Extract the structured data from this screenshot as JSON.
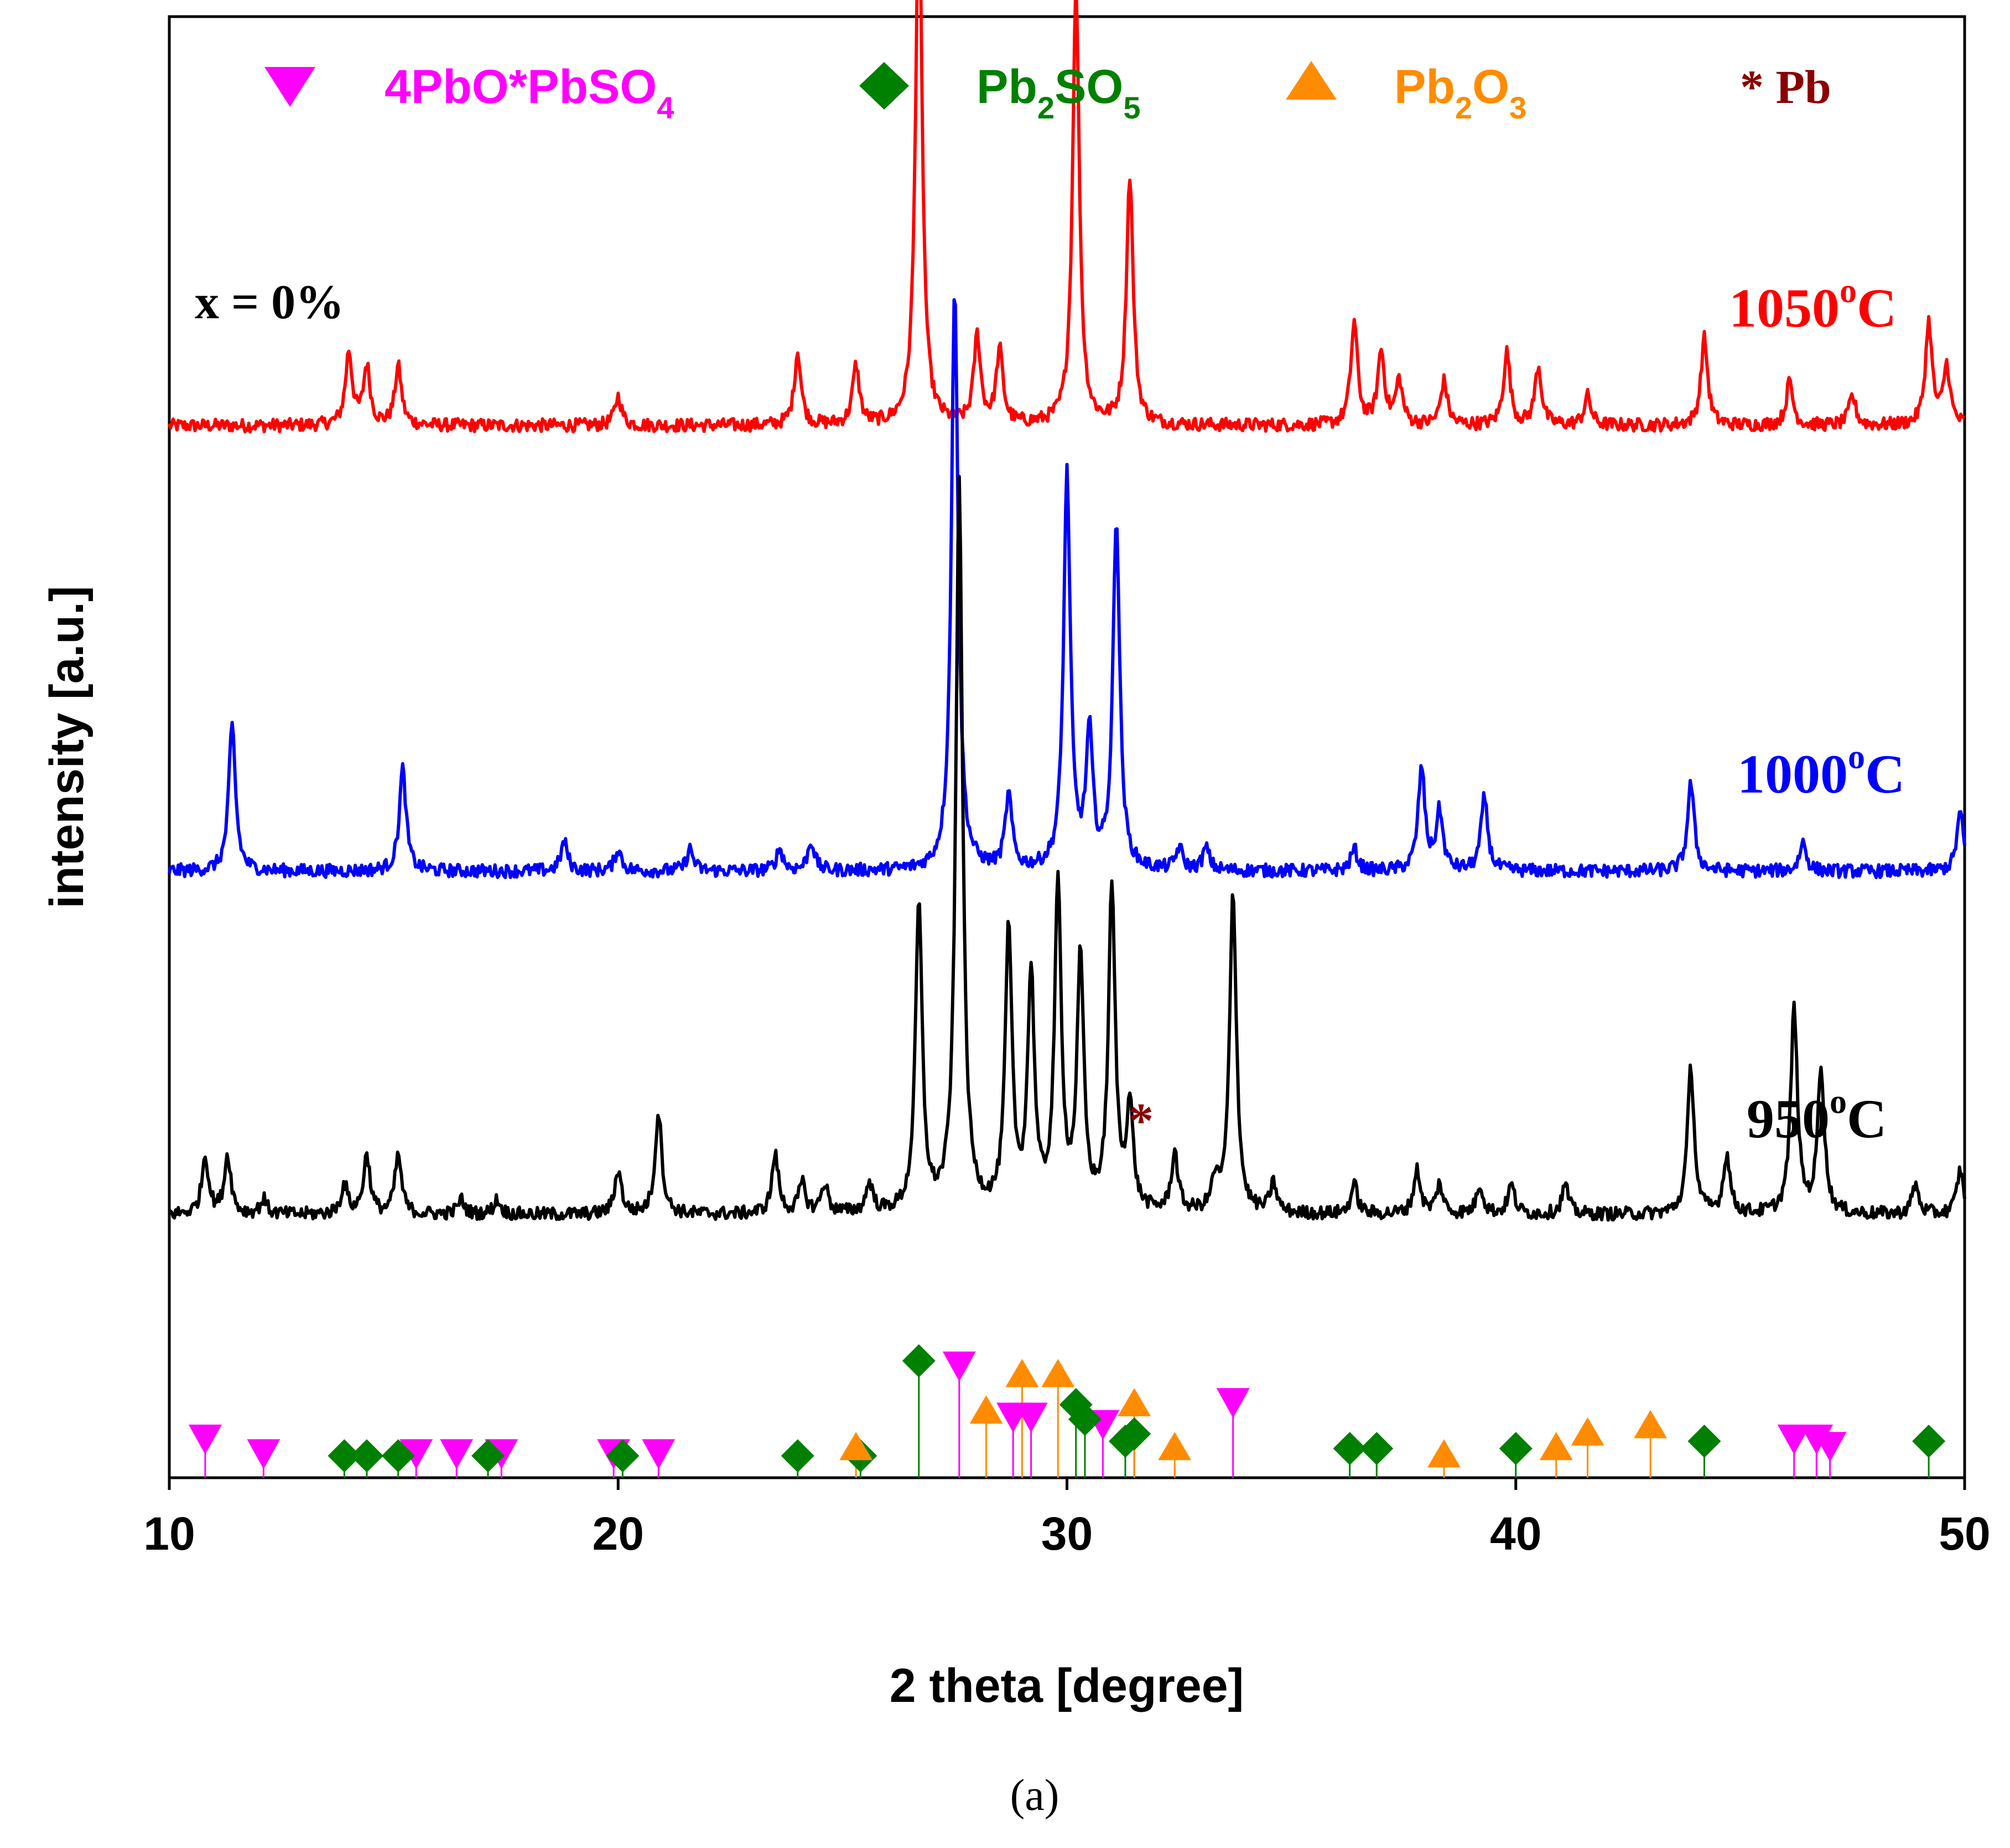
{
  "chart_data": {
    "type": "line",
    "xlabel": "2 theta [degree]",
    "ylabel": "intensity [a.u.]",
    "xlim": [
      10,
      50
    ],
    "xticks": [
      "10",
      "20",
      "30",
      "40",
      "50"
    ],
    "annotation_sample": "x = 0%",
    "panel_label": "(a)",
    "pb_marker_text": "*",
    "legend": [
      {
        "key": "pbo_pbso4",
        "symbol": "triangle-down",
        "label_main": "4PbO*PbSO",
        "label_sub": "4",
        "label_tail": "",
        "color": "#ff00ff"
      },
      {
        "key": "pb2so5",
        "symbol": "diamond",
        "label_main": "Pb",
        "label_sub": "2",
        "label_tail": "SO",
        "label_sub2": "5",
        "color": "#008000"
      },
      {
        "key": "pb2o3",
        "symbol": "triangle-up",
        "label_main": "Pb",
        "label_sub": "2",
        "label_tail": "O",
        "label_sub2": "3",
        "color": "#ff8c00"
      },
      {
        "key": "pb",
        "symbol": "asterisk",
        "label_main": "* Pb",
        "color": "#8b0000"
      }
    ],
    "series": [
      {
        "name": "1050°C",
        "label_num": "1050",
        "label_unit": "C",
        "label_deg": "o",
        "color": "#ff0000",
        "baseline": 0.72,
        "peaks": [
          [
            14.0,
            0.05
          ],
          [
            14.4,
            0.04
          ],
          [
            15.1,
            0.04
          ],
          [
            20.0,
            0.02
          ],
          [
            24.0,
            0.05
          ],
          [
            25.3,
            0.04
          ],
          [
            26.7,
            0.36
          ],
          [
            28.0,
            0.06
          ],
          [
            28.5,
            0.05
          ],
          [
            30.2,
            0.3
          ],
          [
            31.4,
            0.17
          ],
          [
            36.4,
            0.07
          ],
          [
            37.0,
            0.05
          ],
          [
            37.4,
            0.03
          ],
          [
            38.4,
            0.03
          ],
          [
            39.8,
            0.05
          ],
          [
            40.5,
            0.04
          ],
          [
            41.6,
            0.02
          ],
          [
            44.2,
            0.06
          ],
          [
            46.1,
            0.03
          ],
          [
            47.5,
            0.02
          ],
          [
            49.2,
            0.07
          ],
          [
            49.6,
            0.04
          ]
        ]
      },
      {
        "name": "1000°C",
        "label_num": "1000",
        "label_unit": "C",
        "label_deg": "o",
        "color": "#0000ff",
        "baseline": 0.415,
        "peaks": [
          [
            11.4,
            0.1
          ],
          [
            15.2,
            0.07
          ],
          [
            18.8,
            0.02
          ],
          [
            20.0,
            0.015
          ],
          [
            21.6,
            0.015
          ],
          [
            23.6,
            0.015
          ],
          [
            24.3,
            0.02
          ],
          [
            27.5,
            0.4
          ],
          [
            28.7,
            0.05
          ],
          [
            30.0,
            0.27
          ],
          [
            30.5,
            0.09
          ],
          [
            31.1,
            0.24
          ],
          [
            32.5,
            0.015
          ],
          [
            33.1,
            0.015
          ],
          [
            36.4,
            0.015
          ],
          [
            37.9,
            0.07
          ],
          [
            38.3,
            0.04
          ],
          [
            39.3,
            0.05
          ],
          [
            43.9,
            0.06
          ],
          [
            46.4,
            0.02
          ],
          [
            49.9,
            0.04
          ]
        ]
      },
      {
        "name": "950°C",
        "label_num": "950",
        "label_unit": "C",
        "label_deg": "o",
        "color": "#000000",
        "baseline": 0.18,
        "peaks": [
          [
            10.8,
            0.04
          ],
          [
            11.3,
            0.04
          ],
          [
            12.1,
            0.01
          ],
          [
            13.9,
            0.02
          ],
          [
            14.4,
            0.04
          ],
          [
            15.1,
            0.04
          ],
          [
            16.5,
            0.01
          ],
          [
            17.3,
            0.01
          ],
          [
            20.0,
            0.03
          ],
          [
            20.9,
            0.07
          ],
          [
            23.5,
            0.04
          ],
          [
            24.1,
            0.02
          ],
          [
            24.6,
            0.02
          ],
          [
            25.6,
            0.02
          ],
          [
            26.7,
            0.21
          ],
          [
            27.6,
            0.5
          ],
          [
            28.7,
            0.19
          ],
          [
            29.2,
            0.16
          ],
          [
            29.8,
            0.22
          ],
          [
            30.3,
            0.17
          ],
          [
            31.0,
            0.22
          ],
          [
            31.4,
            0.07
          ],
          [
            32.4,
            0.04
          ],
          [
            33.3,
            0.02
          ],
          [
            33.7,
            0.22
          ],
          [
            34.6,
            0.02
          ],
          [
            36.4,
            0.02
          ],
          [
            37.8,
            0.03
          ],
          [
            38.3,
            0.02
          ],
          [
            39.2,
            0.02
          ],
          [
            39.9,
            0.02
          ],
          [
            41.1,
            0.02
          ],
          [
            43.9,
            0.1
          ],
          [
            44.7,
            0.04
          ],
          [
            46.2,
            0.14
          ],
          [
            46.8,
            0.1
          ],
          [
            48.9,
            0.02
          ],
          [
            49.9,
            0.03
          ]
        ]
      }
    ],
    "reference_markers": {
      "pbo_pbso4": [
        [
          10.8,
          0.025
        ],
        [
          12.1,
          0.015
        ],
        [
          15.5,
          0.015
        ],
        [
          16.4,
          0.015
        ],
        [
          17.4,
          0.015
        ],
        [
          19.9,
          0.015
        ],
        [
          20.9,
          0.015
        ],
        [
          27.6,
          0.075
        ],
        [
          28.8,
          0.04
        ],
        [
          29.2,
          0.04
        ],
        [
          30.8,
          0.035
        ],
        [
          33.7,
          0.05
        ],
        [
          46.2,
          0.025
        ],
        [
          46.7,
          0.025
        ],
        [
          47.0,
          0.02
        ]
      ],
      "pb2so5": [
        [
          13.9,
          0.015
        ],
        [
          14.4,
          0.015
        ],
        [
          15.1,
          0.015
        ],
        [
          17.1,
          0.015
        ],
        [
          20.1,
          0.015
        ],
        [
          24.0,
          0.015
        ],
        [
          25.4,
          0.015
        ],
        [
          26.7,
          0.08
        ],
        [
          30.2,
          0.05
        ],
        [
          30.4,
          0.04
        ],
        [
          31.3,
          0.025
        ],
        [
          31.5,
          0.03
        ],
        [
          36.3,
          0.02
        ],
        [
          36.9,
          0.02
        ],
        [
          40.0,
          0.02
        ],
        [
          44.2,
          0.025
        ],
        [
          49.2,
          0.025
        ]
      ],
      "pb2o3": [
        [
          25.3,
          0.02
        ],
        [
          28.2,
          0.045
        ],
        [
          29.0,
          0.07
        ],
        [
          29.8,
          0.07
        ],
        [
          31.5,
          0.05
        ],
        [
          32.4,
          0.02
        ],
        [
          38.4,
          0.015
        ],
        [
          40.9,
          0.02
        ],
        [
          41.6,
          0.03
        ],
        [
          43.0,
          0.035
        ]
      ]
    }
  }
}
